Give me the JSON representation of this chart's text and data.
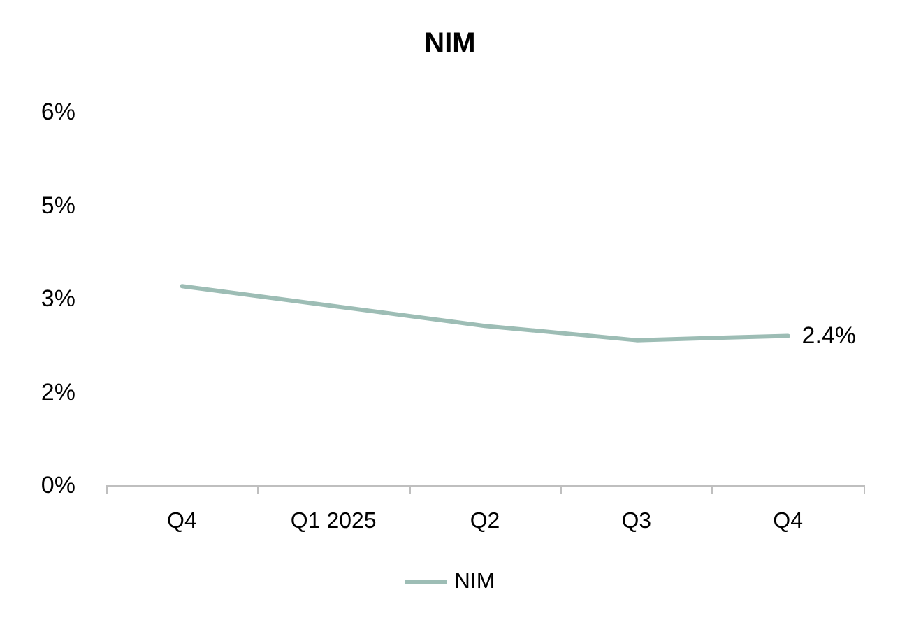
{
  "chart_data": {
    "type": "line",
    "title": "NIM",
    "categories": [
      "Q4",
      "Q1 2025",
      "Q2",
      "Q3",
      "Q4"
    ],
    "series": [
      {
        "name": "NIM",
        "color": "#9dbdb5",
        "values": [
          3.2,
          2.88,
          2.56,
          2.33,
          2.4
        ],
        "value_labels": [
          null,
          null,
          null,
          null,
          "2.4%"
        ]
      }
    ],
    "ylim": [
      0,
      6
    ],
    "yticks": [
      {
        "value": 0,
        "label": "0%"
      },
      {
        "value": 1.5,
        "label": "2%"
      },
      {
        "value": 3,
        "label": "3%"
      },
      {
        "value": 4.5,
        "label": "5%"
      },
      {
        "value": 6,
        "label": "6%"
      }
    ],
    "grid": false,
    "legend": "bottom",
    "marker": "none",
    "line_style": "solid"
  }
}
